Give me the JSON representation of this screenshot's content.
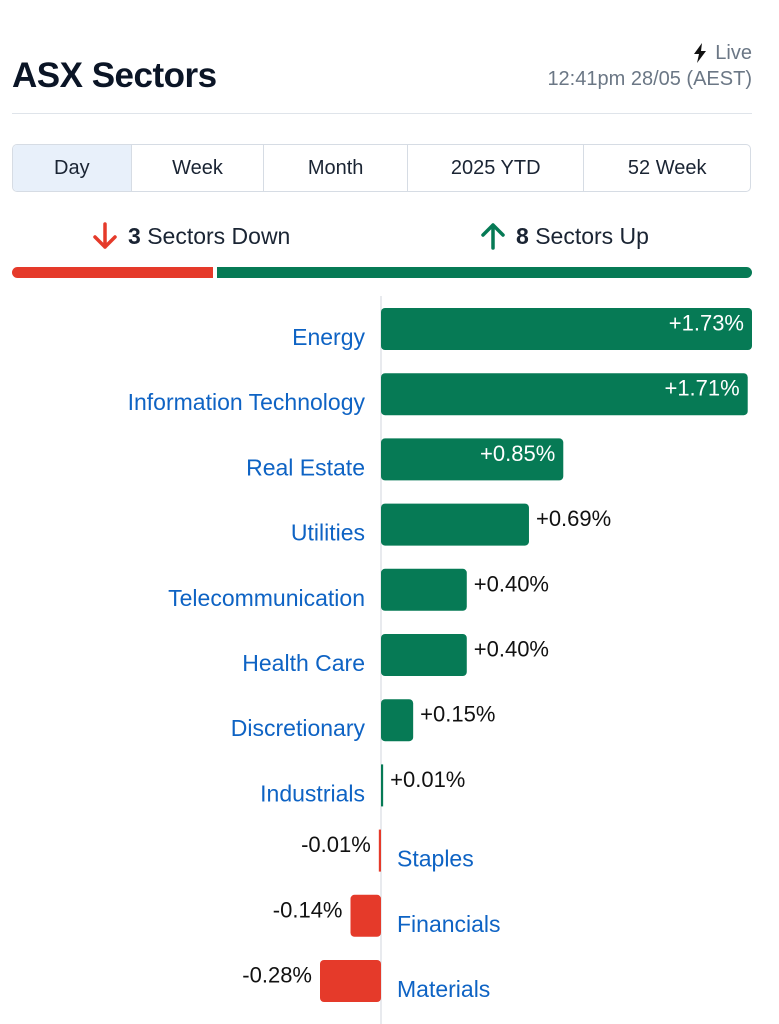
{
  "header": {
    "title": "ASX Sectors",
    "live_label": "Live",
    "timestamp": "12:41pm 28/05 (AEST)"
  },
  "tabs": [
    {
      "label": "Day",
      "active": true
    },
    {
      "label": "Week",
      "active": false
    },
    {
      "label": "Month",
      "active": false
    },
    {
      "label": "2025 YTD",
      "active": false
    },
    {
      "label": "52 Week",
      "active": false
    }
  ],
  "summary": {
    "down_count": "3",
    "down_label": "Sectors Down",
    "up_count": "8",
    "up_label": "Sectors Up"
  },
  "colors": {
    "up": "#067a55",
    "down": "#e53a2a",
    "link": "#0e63c4"
  },
  "icons": {
    "live": "lightning-bolt-icon",
    "down": "arrow-down-icon",
    "up": "arrow-up-icon"
  },
  "chart_data": {
    "type": "bar",
    "orientation": "horizontal",
    "categories": [
      "Energy",
      "Information Technology",
      "Real Estate",
      "Utilities",
      "Telecommunication",
      "Health Care",
      "Discretionary",
      "Industrials",
      "Staples",
      "Financials",
      "Materials"
    ],
    "values": [
      1.73,
      1.71,
      0.85,
      0.69,
      0.4,
      0.4,
      0.15,
      0.01,
      -0.01,
      -0.14,
      -0.28
    ],
    "value_labels": [
      "+1.73%",
      "+1.71%",
      "+0.85%",
      "+0.69%",
      "+0.40%",
      "+0.40%",
      "+0.15%",
      "+0.01%",
      "-0.01%",
      "-0.14%",
      "-0.28%"
    ],
    "xlim": [
      -0.28,
      1.73
    ],
    "title": "",
    "xlabel": "",
    "ylabel": ""
  }
}
